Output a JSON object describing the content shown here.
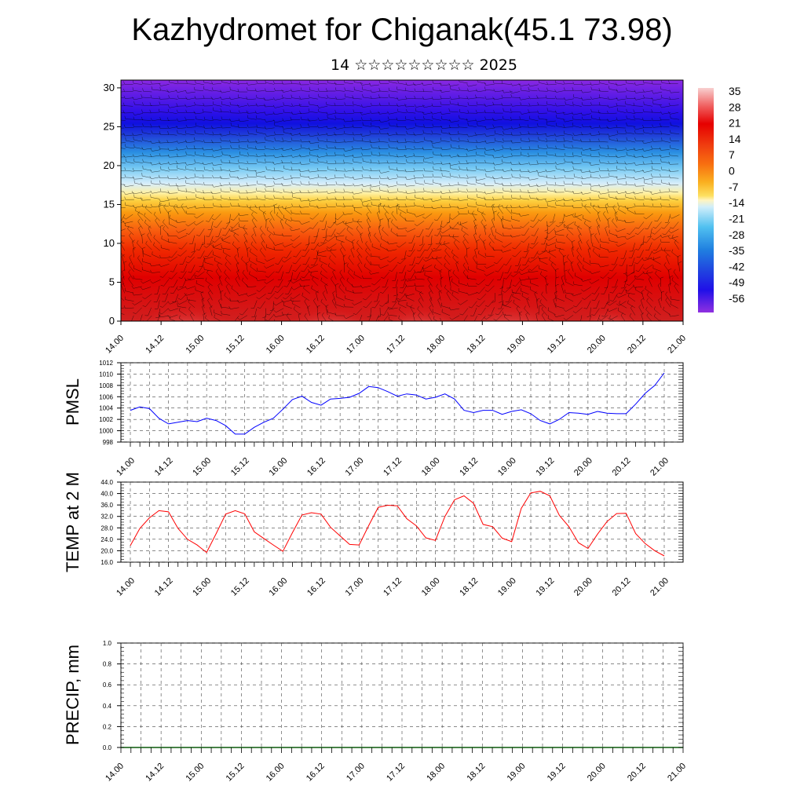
{
  "page": {
    "title": "Kazhydromet for Chiganak(45.1 73.98)",
    "subtitle": "14 ☆☆☆☆☆☆☆☆☆ 2025"
  },
  "colors": {
    "pmsl_line": "#0000ff",
    "temp_line": "#ff0000",
    "precip_line": "#0a5a0a",
    "grid": "#555555"
  },
  "chart_data": [
    {
      "type": "heatmap",
      "name": "cross-section",
      "ylim": [
        0,
        31
      ],
      "yticks": [
        0,
        5,
        10,
        15,
        20,
        25,
        30
      ],
      "xticks": [
        "14.00",
        "14.12",
        "15.00",
        "15.12",
        "16.00",
        "16.12",
        "17.00",
        "17.12",
        "18.00",
        "18.12",
        "19.00",
        "19.12",
        "20.00",
        "20.12",
        "21.00"
      ],
      "colorbar": {
        "labels": [
          "35",
          "28",
          "21",
          "14",
          "7",
          "0",
          "-7",
          "-14",
          "-21",
          "-28",
          "-35",
          "-42",
          "-49",
          "-56"
        ],
        "colors": [
          "#f8c8c8",
          "#f04040",
          "#e60000",
          "#f03010",
          "#f86010",
          "#fa9a10",
          "#fcd040",
          "#fff0a0",
          "#a0e0f8",
          "#40b8f0",
          "#2080e0",
          "#2040e0",
          "#3010e8",
          "#8020e0"
        ]
      },
      "wind_barbs": true
    },
    {
      "type": "line",
      "name": "PMSL",
      "ylabel": "PMSL",
      "ylim": [
        998,
        1012
      ],
      "yticks": [
        "998",
        "1000",
        "1002",
        "1004",
        "1006",
        "1008",
        "1010",
        "1012"
      ],
      "xticks": [
        "14.00",
        "14.12",
        "15.00",
        "15.12",
        "16.00",
        "16.12",
        "17.00",
        "17.12",
        "18.00",
        "18.12",
        "19.00",
        "19.12",
        "20.00",
        "20.12",
        "21.00"
      ],
      "x_hours": [
        0,
        3,
        6,
        9,
        12,
        15,
        18,
        21,
        24,
        27,
        30,
        33,
        36,
        39,
        42,
        45,
        48,
        51,
        54,
        57,
        60,
        63,
        66,
        69,
        72,
        75,
        78,
        81,
        84,
        87,
        90,
        93,
        96,
        99,
        102,
        105,
        108,
        111,
        114,
        117,
        120,
        123,
        126,
        129,
        132,
        135,
        138,
        141,
        144,
        147,
        150,
        153,
        156,
        159,
        162,
        165,
        168
      ],
      "values": [
        1003.6,
        1004.2,
        1003.9,
        1002.2,
        1001.2,
        1001.5,
        1001.8,
        1001.6,
        1002.2,
        1001.8,
        1000.9,
        999.4,
        999.4,
        1000.6,
        1001.5,
        1002.2,
        1003.8,
        1005.5,
        1006.1,
        1005.0,
        1004.5,
        1005.6,
        1005.7,
        1005.9,
        1006.6,
        1007.8,
        1007.6,
        1006.9,
        1006.1,
        1006.5,
        1006.3,
        1005.6,
        1005.9,
        1006.5,
        1005.6,
        1003.6,
        1003.2,
        1003.6,
        1003.6,
        1002.9,
        1003.4,
        1003.7,
        1003.0,
        1001.8,
        1001.2,
        1002.0,
        1003.2,
        1003.1,
        1002.9,
        1003.4,
        1003.1,
        1003.0,
        1003.0,
        1004.7,
        1006.6,
        1008.0,
        1010.2
      ]
    },
    {
      "type": "line",
      "name": "TEMP",
      "ylabel": "TEMP at 2 M",
      "ylim": [
        16,
        44
      ],
      "yticks": [
        "16.0",
        "20.0",
        "24.0",
        "28.0",
        "32.0",
        "36.0",
        "40.0",
        "44.0"
      ],
      "xticks": [
        "14.00",
        "14.12",
        "15.00",
        "15.12",
        "16.00",
        "16.12",
        "17.00",
        "17.12",
        "18.00",
        "18.12",
        "19.00",
        "19.12",
        "20.00",
        "20.12",
        "21.00"
      ],
      "x_hours": [
        0,
        3,
        6,
        9,
        12,
        15,
        18,
        21,
        24,
        27,
        30,
        33,
        36,
        39,
        42,
        45,
        48,
        51,
        54,
        57,
        60,
        63,
        66,
        69,
        72,
        75,
        78,
        81,
        84,
        87,
        90,
        93,
        96,
        99,
        102,
        105,
        108,
        111,
        114,
        117,
        120,
        123,
        126,
        129,
        132,
        135,
        138,
        141,
        144,
        147,
        150,
        153,
        156,
        159,
        162,
        165,
        168
      ],
      "values": [
        21.8,
        27.8,
        31.5,
        34.0,
        33.6,
        27.8,
        24.0,
        22.0,
        19.4,
        26.0,
        32.8,
        34.0,
        32.9,
        26.6,
        24.3,
        22.0,
        19.8,
        26.3,
        32.5,
        33.3,
        32.8,
        28.2,
        25.2,
        22.2,
        22.0,
        28.8,
        35.2,
        35.9,
        35.7,
        31.2,
        28.7,
        24.5,
        23.6,
        32.0,
        37.8,
        39.2,
        36.6,
        29.2,
        28.4,
        24.4,
        23.2,
        34.8,
        40.2,
        40.8,
        39.2,
        32.4,
        28.4,
        22.8,
        20.8,
        25.8,
        30.2,
        33.0,
        33.1,
        26.0,
        22.5,
        20.0,
        18.2
      ]
    },
    {
      "type": "line",
      "name": "PRECIP",
      "ylabel": "PRECIP, mm",
      "ylim": [
        0,
        1
      ],
      "yticks": [
        "0.0",
        "0.2",
        "0.4",
        "0.6",
        "0.8",
        "1.0"
      ],
      "xticks": [
        "14.00",
        "14.12",
        "15.00",
        "15.12",
        "16.00",
        "16.12",
        "17.00",
        "17.12",
        "18.00",
        "18.12",
        "19.00",
        "19.12",
        "20.00",
        "20.12",
        "21.00"
      ],
      "x_hours": [
        0,
        168
      ],
      "values": [
        0,
        0
      ]
    }
  ]
}
